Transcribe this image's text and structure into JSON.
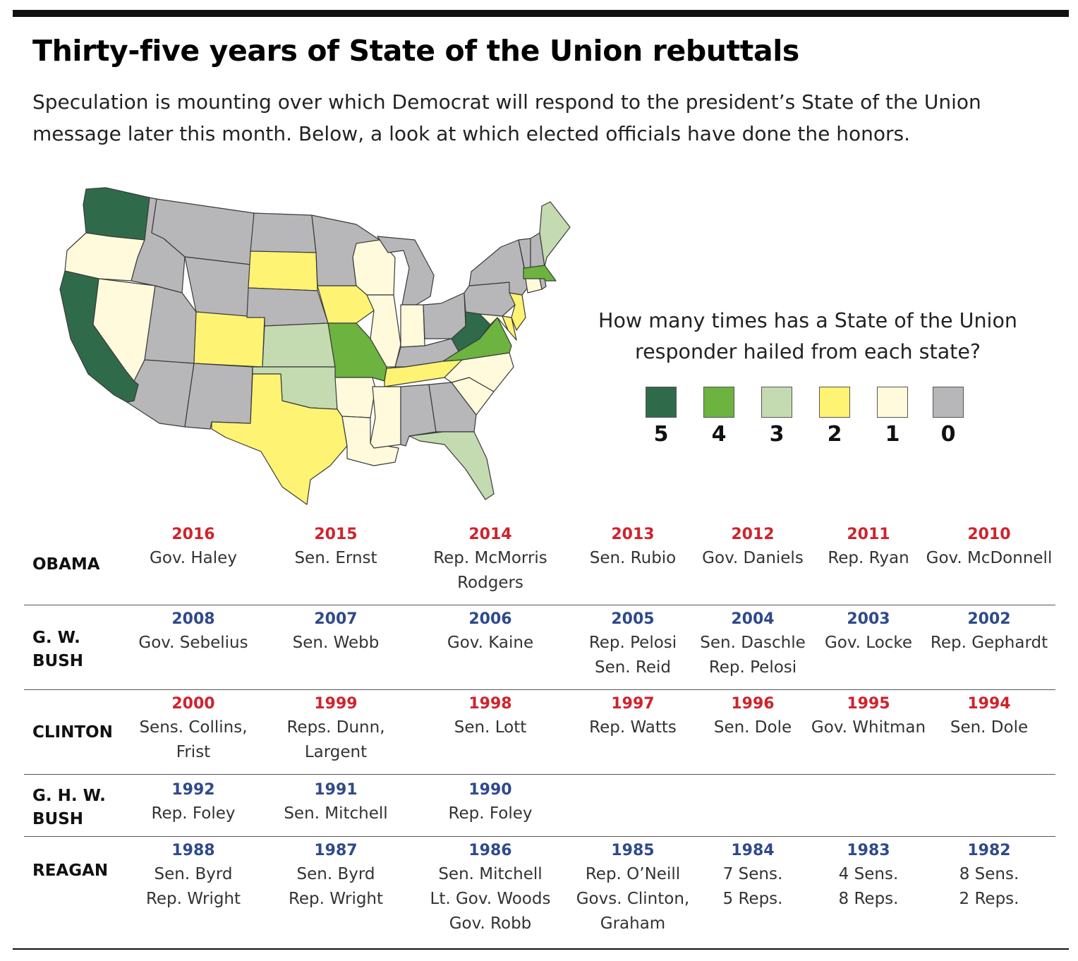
{
  "title": "Thirty-five years of State of the Union rebuttals",
  "subtitle": "Speculation is mounting over which Democrat will respond to the president’s State of the Union message later this month. Below, a look at which elected officials have done the honors.",
  "legend": {
    "title": "How many times has a State of the Union responder hailed from each state?",
    "items": [
      {
        "label": "5",
        "color": "#2f6b4a"
      },
      {
        "label": "4",
        "color": "#6cb33f"
      },
      {
        "label": "3",
        "color": "#c4dbb1"
      },
      {
        "label": "2",
        "color": "#fff373"
      },
      {
        "label": "1",
        "color": "#fffadc"
      },
      {
        "label": "0",
        "color": "#b7b7b9"
      }
    ]
  },
  "map": {
    "colors": {
      "5": "#2f6b4a",
      "4": "#6cb33f",
      "3": "#c4dbb1",
      "2": "#fff373",
      "1": "#fffadc",
      "0": "#b7b7b9"
    },
    "states": {
      "WA": 5,
      "OR": 1,
      "CA": 5,
      "NV": 1,
      "ID": 0,
      "MT": 0,
      "WY": 0,
      "UT": 0,
      "AZ": 0,
      "CO": 2,
      "NM": 0,
      "ND": 0,
      "SD": 2,
      "NE": 0,
      "KS": 3,
      "OK": 3,
      "TX": 2,
      "MN": 0,
      "IA": 2,
      "MO": 4,
      "AR": 1,
      "LA": 1,
      "WI": 1,
      "IL": 1,
      "MI": 0,
      "IN": 1,
      "OH": 0,
      "KY": 0,
      "TN": 2,
      "MS": 1,
      "AL": 0,
      "GA": 0,
      "FL": 3,
      "SC": 1,
      "NC": 1,
      "VA": 4,
      "WV": 5,
      "MD": 1,
      "DE": 2,
      "PA": 0,
      "NJ": 2,
      "NY": 0,
      "CT": 1,
      "RI": 0,
      "MA": 4,
      "VT": 0,
      "NH": 0,
      "ME": 3
    }
  },
  "table": {
    "rows": [
      {
        "president": "OBAMA",
        "party": "red",
        "entries": [
          {
            "year": "2016",
            "who": "Gov. Haley"
          },
          {
            "year": "2015",
            "who": "Sen. Ernst"
          },
          {
            "year": "2014",
            "who": "Rep. McMorris\nRodgers"
          },
          {
            "year": "2013",
            "who": "Sen. Rubio"
          },
          {
            "year": "2012",
            "who": "Gov. Daniels"
          },
          {
            "year": "2011",
            "who": "Rep. Ryan"
          },
          {
            "year": "2010",
            "who": "Gov. McDonnell"
          }
        ]
      },
      {
        "president": "G. W.\nBUSH",
        "party": "blue",
        "entries": [
          {
            "year": "2008",
            "who": "Gov. Sebelius"
          },
          {
            "year": "2007",
            "who": "Sen. Webb"
          },
          {
            "year": "2006",
            "who": "Gov. Kaine"
          },
          {
            "year": "2005",
            "who": "Rep. Pelosi\nSen. Reid"
          },
          {
            "year": "2004",
            "who": "Sen. Daschle\nRep. Pelosi"
          },
          {
            "year": "2003",
            "who": "Gov. Locke"
          },
          {
            "year": "2002",
            "who": "Rep. Gephardt"
          }
        ]
      },
      {
        "president": "CLINTON",
        "party": "red",
        "entries": [
          {
            "year": "2000",
            "who": "Sens. Collins,\nFrist"
          },
          {
            "year": "1999",
            "who": "Reps. Dunn,\nLargent"
          },
          {
            "year": "1998",
            "who": "Sen. Lott"
          },
          {
            "year": "1997",
            "who": "Rep. Watts"
          },
          {
            "year": "1996",
            "who": "Sen. Dole"
          },
          {
            "year": "1995",
            "who": "Gov. Whitman"
          },
          {
            "year": "1994",
            "who": "Sen. Dole"
          }
        ]
      },
      {
        "president": "G. H. W.\nBUSH",
        "party": "blue",
        "entries": [
          {
            "year": "1992",
            "who": "Rep. Foley"
          },
          {
            "year": "1991",
            "who": "Sen. Mitchell"
          },
          {
            "year": "1990",
            "who": "Rep. Foley"
          }
        ]
      },
      {
        "president": "REAGAN",
        "party": "blue",
        "entries": [
          {
            "year": "1988",
            "who": "Sen. Byrd\nRep. Wright"
          },
          {
            "year": "1987",
            "who": "Sen. Byrd\nRep. Wright"
          },
          {
            "year": "1986",
            "who": "Sen. Mitchell\nLt. Gov. Woods\nGov. Robb"
          },
          {
            "year": "1985",
            "who": "Rep. O’Neill\nGovs. Clinton,\nGraham"
          },
          {
            "year": "1984",
            "who": "7 Sens.\n5 Reps."
          },
          {
            "year": "1983",
            "who": "4 Sens.\n8 Reps."
          },
          {
            "year": "1982",
            "who": "8 Sens.\n2 Reps."
          }
        ]
      }
    ]
  }
}
